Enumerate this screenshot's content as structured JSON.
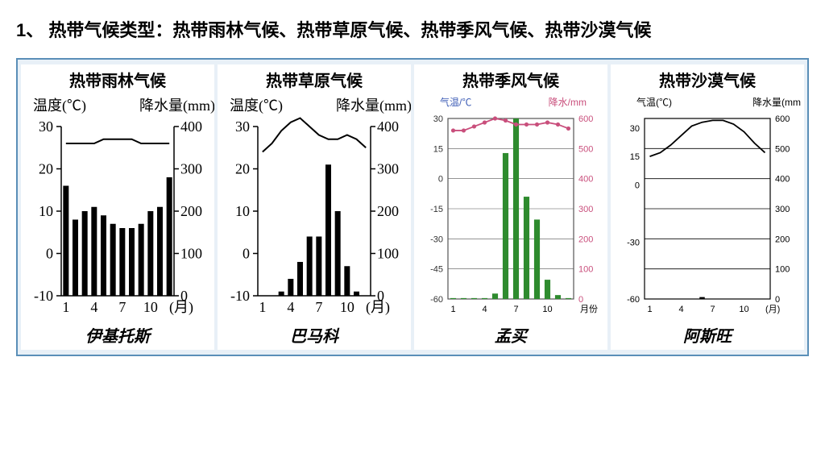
{
  "heading": "1、 热带气候类型：热带雨林气候、热带草原气候、热带季风气候、热带沙漠气候",
  "charts": [
    {
      "title": "热带雨林气候",
      "city": "伊基托斯",
      "type": "climograph",
      "temp_axis_label": "温度(℃)",
      "precip_axis_label": "降水量(mm)",
      "x_axis_label": "(月)",
      "x_ticks": [
        1,
        4,
        7,
        10
      ],
      "temp_ticks": [
        -10,
        0,
        10,
        20,
        30
      ],
      "precip_ticks": [
        0,
        100,
        200,
        300,
        400
      ],
      "temp_line": [
        26,
        26,
        26,
        26,
        27,
        27,
        27,
        27,
        26,
        26,
        26,
        26
      ],
      "precip_bars": [
        260,
        180,
        200,
        210,
        190,
        170,
        160,
        160,
        170,
        200,
        210,
        280
      ],
      "bar_color": "#000000",
      "line_color": "#000000",
      "label_fontsize": 18,
      "tick_fontsize": 18,
      "style": "bw-serif"
    },
    {
      "title": "热带草原气候",
      "city": "巴马科",
      "type": "climograph",
      "temp_axis_label": "温度(℃)",
      "precip_axis_label": "降水量(mm)",
      "x_axis_label": "(月)",
      "x_ticks": [
        1,
        4,
        7,
        10
      ],
      "temp_ticks": [
        -10,
        0,
        10,
        20,
        30
      ],
      "precip_ticks": [
        0,
        100,
        200,
        300,
        400
      ],
      "temp_line": [
        24,
        26,
        29,
        31,
        32,
        30,
        28,
        27,
        27,
        28,
        27,
        25
      ],
      "precip_bars": [
        0,
        0,
        10,
        40,
        80,
        140,
        140,
        310,
        200,
        70,
        10,
        0
      ],
      "bar_color": "#000000",
      "line_color": "#000000",
      "label_fontsize": 18,
      "tick_fontsize": 18,
      "style": "bw-serif"
    },
    {
      "title": "热带季风气候",
      "city": "孟买",
      "type": "climograph",
      "temp_axis_label": "气温/℃",
      "precip_axis_label": "降水/mm",
      "x_axis_label": "月份",
      "x_ticks": [
        1,
        4,
        7,
        10
      ],
      "temp_ticks": [
        -60,
        -45,
        -30,
        -15,
        0,
        15,
        30
      ],
      "precip_ticks": [
        0,
        100,
        200,
        300,
        400,
        500,
        600
      ],
      "temp_line": [
        24,
        24,
        26,
        28,
        30,
        29,
        27,
        27,
        27,
        28,
        27,
        25
      ],
      "precip_bars": [
        3,
        3,
        3,
        3,
        18,
        485,
        617,
        340,
        264,
        64,
        13,
        3
      ],
      "bar_color": "#2e8b2e",
      "line_color": "#c94f7c",
      "temp_label_color": "#3b5bb5",
      "precip_label_color": "#c94f7c",
      "label_fontsize": 12,
      "tick_fontsize": 11,
      "grid_color": "#555555",
      "style": "color-grid"
    },
    {
      "title": "热带沙漠气候",
      "city": "阿斯旺",
      "type": "climograph",
      "temp_axis_label": "气温(℃)",
      "precip_axis_label": "降水量(mm",
      "x_axis_label": "(月)",
      "x_ticks": [
        1,
        4,
        7,
        10
      ],
      "temp_ticks": [
        -60,
        -30,
        0,
        15,
        30
      ],
      "precip_ticks": [
        0,
        100,
        200,
        300,
        400,
        500,
        600
      ],
      "temp_line": [
        15,
        17,
        21,
        26,
        31,
        33,
        34,
        34,
        32,
        28,
        22,
        17
      ],
      "precip_bars": [
        0,
        0,
        0,
        0,
        0,
        1,
        0,
        0,
        0,
        0,
        0,
        0
      ],
      "bar_color": "#000000",
      "line_color": "#000000",
      "label_fontsize": 12,
      "tick_fontsize": 11,
      "grid_color": "#000000",
      "style": "bw-grid"
    }
  ]
}
